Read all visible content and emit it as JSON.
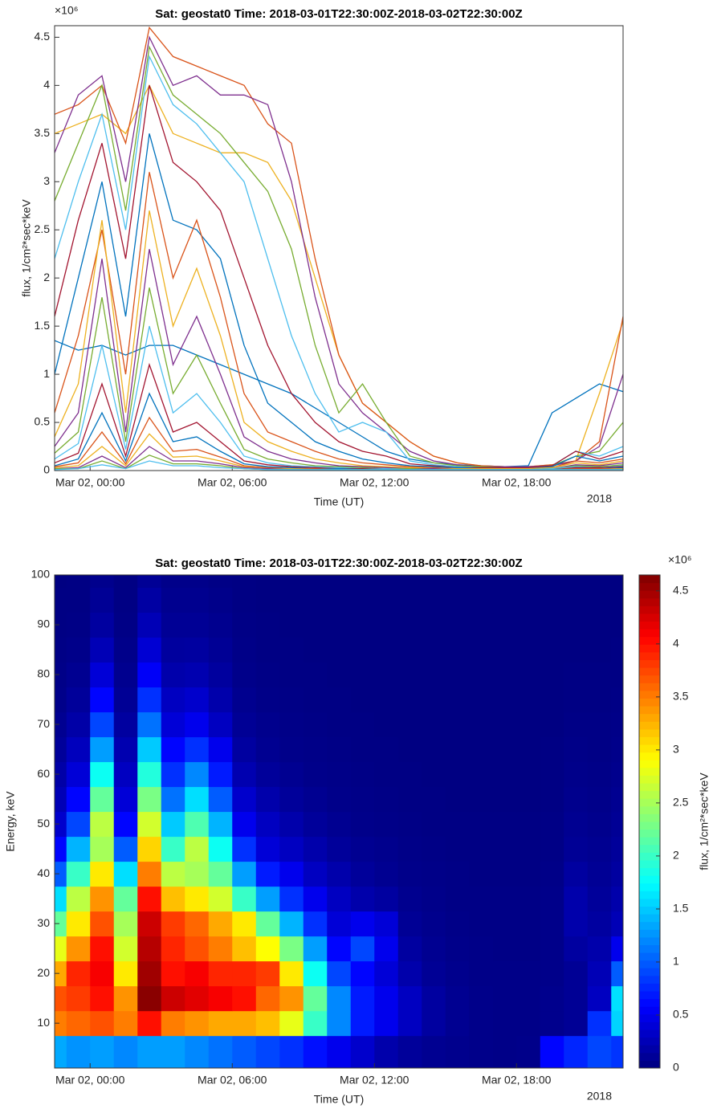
{
  "chart_data": [
    {
      "type": "line",
      "title": "Sat: geostat0  Time: 2018-03-01T22:30:00Z-2018-03-02T22:30:00Z",
      "x_label": "Time (UT)",
      "y_label": "flux, 1/cm²*sec*keV",
      "y_multiplier": "×10⁶",
      "x_year_label": "2018",
      "x": [
        "2018-03-01T22:30",
        "2018-03-01T23:30",
        "2018-03-02T00:30",
        "2018-03-02T01:30",
        "2018-03-02T02:30",
        "2018-03-02T03:30",
        "2018-03-02T04:30",
        "2018-03-02T05:30",
        "2018-03-02T06:30",
        "2018-03-02T07:30",
        "2018-03-02T08:30",
        "2018-03-02T09:30",
        "2018-03-02T10:30",
        "2018-03-02T11:30",
        "2018-03-02T12:30",
        "2018-03-02T13:30",
        "2018-03-02T14:30",
        "2018-03-02T15:30",
        "2018-03-02T16:30",
        "2018-03-02T17:30",
        "2018-03-02T18:30",
        "2018-03-02T19:30",
        "2018-03-02T20:30",
        "2018-03-02T21:30",
        "2018-03-02T22:30"
      ],
      "xlim": [
        "2018-03-01T22:30",
        "2018-03-02T22:30"
      ],
      "xticks": [
        {
          "value": "2018-03-02T00:00",
          "label": "Mar 02, 00:00"
        },
        {
          "value": "2018-03-02T06:00",
          "label": "Mar 02, 06:00"
        },
        {
          "value": "2018-03-02T12:00",
          "label": "Mar 02, 12:00"
        },
        {
          "value": "2018-03-02T18:00",
          "label": "Mar 02, 18:00"
        }
      ],
      "ylim": [
        0,
        4.62
      ],
      "yticks": [
        0,
        0.5,
        1,
        1.5,
        2,
        2.5,
        3,
        3.5,
        4,
        4.5
      ],
      "series": [
        {
          "color": "#0072BD",
          "values": [
            1.35,
            1.25,
            1.3,
            1.2,
            1.3,
            1.3,
            1.2,
            1.1,
            1.0,
            0.9,
            0.8,
            0.65,
            0.5,
            0.35,
            0.2,
            0.12,
            0.08,
            0.06,
            0.05,
            0.04,
            0.05,
            0.6,
            0.75,
            0.9,
            0.82
          ]
        },
        {
          "color": "#EDB120",
          "values": [
            3.5,
            3.6,
            3.7,
            3.5,
            4.0,
            3.5,
            3.4,
            3.3,
            3.3,
            3.2,
            2.8,
            2.0,
            1.2,
            0.7,
            0.5,
            0.3,
            0.15,
            0.08,
            0.05,
            0.04,
            0.04,
            0.06,
            0.1,
            0.8,
            1.55
          ]
        },
        {
          "color": "#D95319",
          "values": [
            3.7,
            3.8,
            4.0,
            3.4,
            4.6,
            4.3,
            4.2,
            4.1,
            4.0,
            3.6,
            3.4,
            2.2,
            1.2,
            0.7,
            0.5,
            0.3,
            0.15,
            0.08,
            0.05,
            0.04,
            0.04,
            0.06,
            0.1,
            0.3,
            1.6
          ]
        },
        {
          "color": "#7E2F8E",
          "values": [
            3.3,
            3.9,
            4.1,
            3.0,
            4.5,
            4.0,
            4.1,
            3.9,
            3.9,
            3.8,
            3.0,
            1.8,
            0.9,
            0.6,
            0.4,
            0.2,
            0.1,
            0.06,
            0.04,
            0.04,
            0.04,
            0.05,
            0.1,
            0.25,
            1.0
          ]
        },
        {
          "color": "#77AC30",
          "values": [
            2.8,
            3.4,
            4.0,
            2.7,
            4.4,
            3.9,
            3.7,
            3.5,
            3.2,
            2.9,
            2.3,
            1.3,
            0.6,
            0.9,
            0.5,
            0.15,
            0.08,
            0.05,
            0.04,
            0.03,
            0.03,
            0.05,
            0.15,
            0.2,
            0.5
          ]
        },
        {
          "color": "#4DBEEE",
          "values": [
            2.2,
            3.0,
            3.7,
            2.5,
            4.3,
            3.8,
            3.6,
            3.3,
            3.0,
            2.2,
            1.4,
            0.8,
            0.4,
            0.5,
            0.4,
            0.1,
            0.06,
            0.04,
            0.03,
            0.03,
            0.03,
            0.05,
            0.2,
            0.15,
            0.25
          ]
        },
        {
          "color": "#A2142F",
          "values": [
            1.6,
            2.6,
            3.4,
            2.2,
            4.0,
            3.2,
            3.0,
            2.7,
            2.0,
            1.3,
            0.8,
            0.5,
            0.3,
            0.2,
            0.15,
            0.07,
            0.05,
            0.03,
            0.03,
            0.03,
            0.03,
            0.05,
            0.2,
            0.12,
            0.2
          ]
        },
        {
          "color": "#0072BD",
          "values": [
            1.0,
            2.0,
            3.0,
            1.6,
            3.5,
            2.6,
            2.5,
            2.2,
            1.3,
            0.7,
            0.5,
            0.3,
            0.2,
            0.12,
            0.08,
            0.05,
            0.04,
            0.03,
            0.02,
            0.02,
            0.02,
            0.04,
            0.15,
            0.1,
            0.15
          ]
        },
        {
          "color": "#D95319",
          "values": [
            0.6,
            1.4,
            2.5,
            1.0,
            3.1,
            2.0,
            2.6,
            1.8,
            0.8,
            0.4,
            0.3,
            0.2,
            0.12,
            0.08,
            0.06,
            0.04,
            0.03,
            0.02,
            0.02,
            0.02,
            0.02,
            0.03,
            0.1,
            0.08,
            0.12
          ]
        },
        {
          "color": "#EDB120",
          "values": [
            0.35,
            0.9,
            2.6,
            0.6,
            2.7,
            1.5,
            2.1,
            1.4,
            0.5,
            0.3,
            0.2,
            0.12,
            0.08,
            0.05,
            0.04,
            0.03,
            0.02,
            0.02,
            0.02,
            0.02,
            0.02,
            0.03,
            0.08,
            0.06,
            0.1
          ]
        },
        {
          "color": "#7E2F8E",
          "values": [
            0.25,
            0.6,
            2.2,
            0.4,
            2.3,
            1.1,
            1.6,
            1.0,
            0.35,
            0.2,
            0.12,
            0.08,
            0.05,
            0.04,
            0.03,
            0.02,
            0.02,
            0.01,
            0.01,
            0.01,
            0.01,
            0.02,
            0.06,
            0.05,
            0.08
          ]
        },
        {
          "color": "#77AC30",
          "values": [
            0.18,
            0.4,
            1.8,
            0.3,
            1.9,
            0.8,
            1.2,
            0.7,
            0.22,
            0.12,
            0.08,
            0.05,
            0.04,
            0.03,
            0.02,
            0.02,
            0.01,
            0.01,
            0.01,
            0.01,
            0.01,
            0.02,
            0.05,
            0.04,
            0.06
          ]
        },
        {
          "color": "#4DBEEE",
          "values": [
            0.12,
            0.28,
            1.3,
            0.22,
            1.5,
            0.6,
            0.8,
            0.5,
            0.15,
            0.08,
            0.05,
            0.04,
            0.03,
            0.02,
            0.02,
            0.01,
            0.01,
            0.01,
            0.01,
            0.01,
            0.01,
            0.02,
            0.04,
            0.03,
            0.05
          ]
        },
        {
          "color": "#A2142F",
          "values": [
            0.08,
            0.18,
            0.9,
            0.15,
            1.1,
            0.4,
            0.5,
            0.3,
            0.1,
            0.06,
            0.04,
            0.03,
            0.02,
            0.02,
            0.01,
            0.01,
            0.01,
            0.01,
            0.01,
            0.01,
            0.01,
            0.01,
            0.03,
            0.03,
            0.04
          ]
        },
        {
          "color": "#0072BD",
          "values": [
            0.05,
            0.12,
            0.6,
            0.1,
            0.8,
            0.3,
            0.35,
            0.2,
            0.07,
            0.04,
            0.03,
            0.02,
            0.02,
            0.01,
            0.01,
            0.01,
            0.01,
            0.01,
            0.01,
            0.01,
            0.01,
            0.01,
            0.02,
            0.02,
            0.03
          ]
        },
        {
          "color": "#D95319",
          "values": [
            0.04,
            0.08,
            0.4,
            0.07,
            0.55,
            0.2,
            0.22,
            0.14,
            0.05,
            0.03,
            0.02,
            0.02,
            0.01,
            0.01,
            0.01,
            0.01,
            0.01,
            0.01,
            0.01,
            0.01,
            0.01,
            0.01,
            0.02,
            0.02,
            0.02
          ]
        },
        {
          "color": "#EDB120",
          "values": [
            0.03,
            0.05,
            0.25,
            0.05,
            0.38,
            0.14,
            0.15,
            0.1,
            0.04,
            0.02,
            0.02,
            0.01,
            0.01,
            0.01,
            0.01,
            0.01,
            0.01,
            0.01,
            0.01,
            0.01,
            0.01,
            0.01,
            0.01,
            0.01,
            0.02
          ]
        },
        {
          "color": "#7E2F8E",
          "values": [
            0.02,
            0.03,
            0.15,
            0.03,
            0.25,
            0.1,
            0.1,
            0.07,
            0.03,
            0.02,
            0.01,
            0.01,
            0.01,
            0.01,
            0.01,
            0.01,
            0.01,
            0.01,
            0.01,
            0.01,
            0.01,
            0.01,
            0.01,
            0.01,
            0.01
          ]
        },
        {
          "color": "#77AC30",
          "values": [
            0.02,
            0.02,
            0.1,
            0.02,
            0.16,
            0.07,
            0.07,
            0.05,
            0.02,
            0.01,
            0.01,
            0.01,
            0.01,
            0.01,
            0.01,
            0.01,
            0.01,
            0.01,
            0.01,
            0.01,
            0.01,
            0.01,
            0.01,
            0.01,
            0.01
          ]
        },
        {
          "color": "#4DBEEE",
          "values": [
            0.01,
            0.02,
            0.06,
            0.02,
            0.1,
            0.05,
            0.05,
            0.03,
            0.02,
            0.01,
            0.01,
            0.01,
            0.01,
            0.01,
            0.01,
            0.01,
            0.01,
            0.01,
            0.01,
            0.01,
            0.01,
            0.01,
            0.01,
            0.01,
            0.01
          ]
        }
      ]
    },
    {
      "type": "heatmap",
      "title": "Sat: geostat0  Time: 2018-03-01T22:30:00Z-2018-03-02T22:30:00Z",
      "x_label": "Time (UT)",
      "y_label": "Energy, keV",
      "x_year_label": "2018",
      "colorbar_label": "flux, 1/cm²*sec*keV",
      "colorbar_multiplier": "×10⁶",
      "xlim": [
        "2018-03-01T22:30",
        "2018-03-02T22:30"
      ],
      "xticks": [
        {
          "value": "2018-03-02T00:00",
          "label": "Mar 02, 00:00"
        },
        {
          "value": "2018-03-02T06:00",
          "label": "Mar 02, 06:00"
        },
        {
          "value": "2018-03-02T12:00",
          "label": "Mar 02, 12:00"
        },
        {
          "value": "2018-03-02T18:00",
          "label": "Mar 02, 18:00"
        }
      ],
      "ylim": [
        1,
        100
      ],
      "yticks": [
        10,
        20,
        30,
        40,
        50,
        60,
        70,
        80,
        90,
        100
      ],
      "y_bins": [
        1,
        7.5,
        12.5,
        17.5,
        22.5,
        27.5,
        32.5,
        37.5,
        42.5,
        47.5,
        52.5,
        57.5,
        62.5,
        67.5,
        72.5,
        77.5,
        82.5,
        87.5,
        92.5,
        97.5,
        100
      ],
      "clim": [
        0,
        4.65
      ],
      "cticks": [
        0,
        0.5,
        1,
        1.5,
        2,
        2.5,
        3,
        3.5,
        4,
        4.5
      ]
    }
  ]
}
